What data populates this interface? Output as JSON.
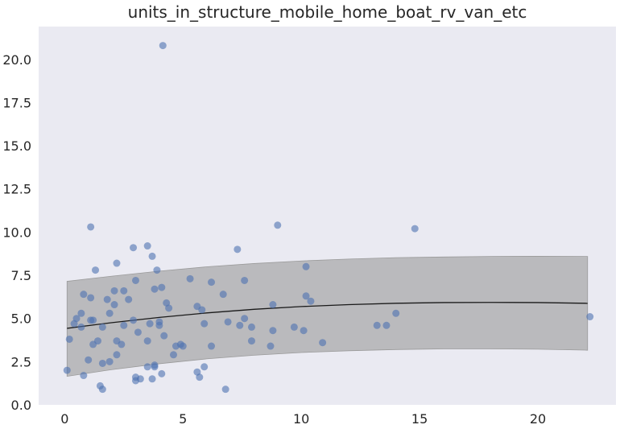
{
  "chart_data": {
    "type": "scatter",
    "title": "units_in_structure_mobile_home_boat_rv_van_etc",
    "xlabel": "",
    "ylabel": "",
    "xlim": [
      -1.1,
      23.3
    ],
    "ylim": [
      0.0,
      21.9
    ],
    "xticks": [
      0,
      5,
      10,
      15,
      20
    ],
    "xtick_labels": [
      "0",
      "5",
      "10",
      "15",
      "20"
    ],
    "yticks": [
      0.0,
      2.5,
      5.0,
      7.5,
      10.0,
      12.5,
      15.0,
      17.5,
      20.0
    ],
    "ytick_labels": [
      "0.0",
      "2.5",
      "5.0",
      "7.5",
      "10.0",
      "12.5",
      "15.0",
      "17.5",
      "20.0"
    ],
    "grid": false,
    "colors": {
      "background": "#eaeaf2",
      "points": "#4c72b0",
      "band": "#9a9a9a",
      "line": "#1a1a1a"
    },
    "points": [
      [
        0.1,
        2.0
      ],
      [
        0.2,
        3.8
      ],
      [
        0.4,
        4.7
      ],
      [
        0.5,
        5.0
      ],
      [
        0.7,
        5.3
      ],
      [
        0.7,
        4.5
      ],
      [
        0.8,
        6.4
      ],
      [
        0.8,
        1.7
      ],
      [
        1.0,
        2.6
      ],
      [
        1.1,
        10.3
      ],
      [
        1.1,
        6.2
      ],
      [
        1.1,
        4.9
      ],
      [
        1.2,
        3.5
      ],
      [
        1.2,
        4.9
      ],
      [
        1.3,
        7.8
      ],
      [
        1.4,
        3.7
      ],
      [
        1.5,
        1.1
      ],
      [
        1.6,
        0.9
      ],
      [
        1.6,
        2.4
      ],
      [
        1.6,
        4.5
      ],
      [
        1.8,
        6.1
      ],
      [
        1.9,
        5.3
      ],
      [
        1.9,
        2.5
      ],
      [
        2.1,
        5.8
      ],
      [
        2.1,
        6.6
      ],
      [
        2.2,
        8.2
      ],
      [
        2.2,
        2.9
      ],
      [
        2.2,
        3.7
      ],
      [
        2.4,
        3.5
      ],
      [
        2.5,
        4.6
      ],
      [
        2.5,
        6.6
      ],
      [
        2.7,
        6.1
      ],
      [
        2.9,
        9.1
      ],
      [
        2.9,
        4.9
      ],
      [
        3.0,
        7.2
      ],
      [
        3.0,
        1.6
      ],
      [
        3.0,
        1.4
      ],
      [
        3.1,
        4.2
      ],
      [
        3.2,
        1.5
      ],
      [
        3.5,
        9.2
      ],
      [
        3.5,
        3.7
      ],
      [
        3.5,
        2.2
      ],
      [
        3.6,
        4.7
      ],
      [
        3.7,
        8.6
      ],
      [
        3.7,
        1.5
      ],
      [
        3.8,
        6.7
      ],
      [
        3.8,
        2.2
      ],
      [
        3.8,
        2.3
      ],
      [
        3.9,
        7.8
      ],
      [
        4.0,
        4.8
      ],
      [
        4.0,
        4.6
      ],
      [
        4.1,
        1.8
      ],
      [
        4.1,
        6.8
      ],
      [
        4.15,
        20.8
      ],
      [
        4.2,
        4.0
      ],
      [
        4.3,
        5.9
      ],
      [
        4.4,
        5.6
      ],
      [
        4.6,
        2.9
      ],
      [
        4.7,
        3.4
      ],
      [
        4.9,
        3.5
      ],
      [
        5.0,
        3.4
      ],
      [
        5.3,
        7.3
      ],
      [
        5.6,
        1.9
      ],
      [
        5.6,
        5.7
      ],
      [
        5.7,
        1.6
      ],
      [
        5.8,
        5.5
      ],
      [
        5.9,
        4.7
      ],
      [
        5.9,
        2.2
      ],
      [
        6.2,
        7.1
      ],
      [
        6.2,
        3.4
      ],
      [
        6.7,
        6.4
      ],
      [
        6.8,
        0.9
      ],
      [
        6.9,
        4.8
      ],
      [
        7.3,
        9.0
      ],
      [
        7.4,
        4.6
      ],
      [
        7.6,
        5.0
      ],
      [
        7.6,
        7.2
      ],
      [
        7.9,
        4.5
      ],
      [
        7.9,
        3.7
      ],
      [
        8.7,
        3.4
      ],
      [
        8.8,
        5.8
      ],
      [
        8.8,
        4.3
      ],
      [
        9.0,
        10.4
      ],
      [
        9.7,
        4.5
      ],
      [
        10.1,
        4.3
      ],
      [
        10.2,
        6.3
      ],
      [
        10.2,
        8.0
      ],
      [
        10.4,
        6.0
      ],
      [
        10.9,
        3.6
      ],
      [
        13.2,
        4.6
      ],
      [
        13.6,
        4.6
      ],
      [
        14.0,
        5.3
      ],
      [
        14.8,
        10.2
      ],
      [
        22.2,
        5.1
      ]
    ],
    "fit_line": [
      [
        0.1,
        4.43
      ],
      [
        2,
        4.76
      ],
      [
        4,
        5.06
      ],
      [
        6,
        5.32
      ],
      [
        8,
        5.53
      ],
      [
        10,
        5.69
      ],
      [
        12,
        5.8
      ],
      [
        14,
        5.88
      ],
      [
        16,
        5.92
      ],
      [
        18,
        5.93
      ],
      [
        20,
        5.92
      ],
      [
        22,
        5.88
      ],
      [
        22.1,
        5.87
      ]
    ],
    "band_upper": [
      [
        0.1,
        7.15
      ],
      [
        2,
        7.45
      ],
      [
        4,
        7.74
      ],
      [
        6,
        7.99
      ],
      [
        8,
        8.18
      ],
      [
        10,
        8.33
      ],
      [
        12,
        8.44
      ],
      [
        14,
        8.52
      ],
      [
        16,
        8.56
      ],
      [
        18,
        8.59
      ],
      [
        20,
        8.6
      ],
      [
        22,
        8.59
      ],
      [
        22.1,
        8.59
      ]
    ],
    "band_lower": [
      [
        0.1,
        1.65
      ],
      [
        2,
        2.04
      ],
      [
        4,
        2.38
      ],
      [
        6,
        2.66
      ],
      [
        8,
        2.87
      ],
      [
        10,
        3.03
      ],
      [
        12,
        3.13
      ],
      [
        14,
        3.2
      ],
      [
        16,
        3.24
      ],
      [
        18,
        3.24
      ],
      [
        20,
        3.22
      ],
      [
        22,
        3.17
      ],
      [
        22.1,
        3.16
      ]
    ]
  }
}
